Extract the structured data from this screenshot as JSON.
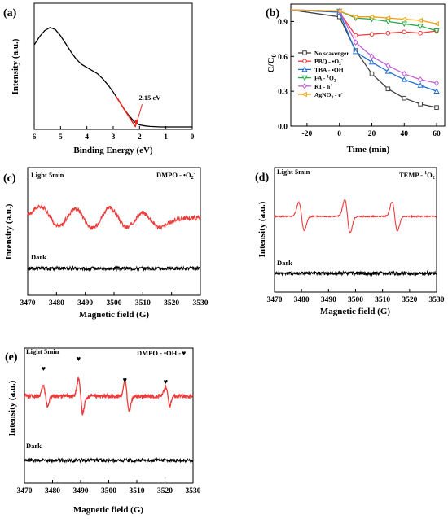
{
  "chart_data": [
    {
      "id": "a",
      "type": "line",
      "panel_label": "(a)",
      "xlabel": "Binding Energy (eV)",
      "ylabel": "Intensity (a.u.)",
      "xlim": [
        6,
        0
      ],
      "x_reversed": true,
      "xticks": [
        6,
        5,
        4,
        3,
        2,
        1,
        0
      ],
      "yticks_shown": false,
      "series": [
        {
          "color": "#000000",
          "x": [
            6.0,
            5.8,
            5.6,
            5.4,
            5.2,
            5.0,
            4.8,
            4.6,
            4.4,
            4.2,
            4.0,
            3.8,
            3.6,
            3.4,
            3.2,
            3.0,
            2.8,
            2.6,
            2.4,
            2.2,
            2.0,
            1.8,
            1.6,
            1.2,
            0.8,
            0.4,
            0.0
          ],
          "y": [
            0.8,
            0.88,
            0.94,
            0.97,
            0.95,
            0.89,
            0.81,
            0.73,
            0.66,
            0.61,
            0.58,
            0.55,
            0.52,
            0.47,
            0.41,
            0.34,
            0.26,
            0.18,
            0.11,
            0.05,
            0.02,
            0.01,
            0.005,
            0.0,
            0.0,
            0.0,
            0.0
          ]
        }
      ],
      "fit_line": {
        "color": "#e8251f",
        "x": [
          2.9,
          2.15
        ],
        "y": [
          0.3,
          0.0
        ]
      },
      "annotation": {
        "text": "2.15 eV",
        "x": 2.15,
        "color": "#e8251f"
      }
    },
    {
      "id": "b",
      "type": "line",
      "panel_label": "(b)",
      "xlabel": "Time (min)",
      "ylabel": "C/C",
      "ylabel_sub": "0",
      "xlim": [
        -30,
        65
      ],
      "ylim": [
        0.0,
        1.05
      ],
      "xticks": [
        -20,
        0,
        20,
        40,
        60
      ],
      "yticks": [
        0.0,
        0.3,
        0.6,
        0.9
      ],
      "x": [
        -30,
        0,
        10,
        20,
        30,
        40,
        50,
        60
      ],
      "series": [
        {
          "label": "No scavenger",
          "sup": "",
          "color": "#404040",
          "marker": "square",
          "values": [
            1.0,
            0.94,
            0.65,
            0.45,
            0.32,
            0.24,
            0.19,
            0.16
          ]
        },
        {
          "label": "PBQ - •O",
          "sub": "2",
          "sup": "-",
          "color": "#ee3a3a",
          "marker": "circle",
          "values": [
            1.0,
            0.98,
            0.78,
            0.79,
            0.8,
            0.81,
            0.8,
            0.82
          ]
        },
        {
          "label": "TBA - •OH",
          "sup": "",
          "color": "#1f6fd0",
          "marker": "triangle",
          "values": [
            1.0,
            0.98,
            0.64,
            0.55,
            0.47,
            0.4,
            0.35,
            0.3
          ]
        },
        {
          "label": "FA - ",
          "sup": "1",
          "tail": "O",
          "sub": "2",
          "color": "#2aa84a",
          "marker": "down",
          "values": [
            1.0,
            0.99,
            0.93,
            0.92,
            0.9,
            0.88,
            0.86,
            0.82
          ]
        },
        {
          "label": "KI - h",
          "sup": "+",
          "color": "#c060d8",
          "marker": "diamond",
          "values": [
            1.0,
            0.99,
            0.72,
            0.6,
            0.52,
            0.45,
            0.4,
            0.37
          ]
        },
        {
          "label": "AgNO",
          "sub": "3",
          "tail": " - e",
          "sup": "-",
          "color": "#f0a010",
          "marker": "left",
          "values": [
            1.0,
            0.99,
            0.94,
            0.94,
            0.93,
            0.92,
            0.91,
            0.88
          ]
        }
      ]
    },
    {
      "id": "c",
      "type": "line",
      "panel_label": "(c)",
      "xlabel": "Magnetic field (G)",
      "ylabel": "Intensity (a.u.)",
      "xlim": [
        3470,
        3530
      ],
      "xticks": [
        3470,
        3480,
        3490,
        3500,
        3510,
        3520,
        3530
      ],
      "top_label": "Light 5min",
      "bottom_label": "Dark",
      "species": "DMPO - •O",
      "species_sub": "2",
      "species_sup": "-",
      "light_color": "#ee3a3a",
      "dark_color": "#000000",
      "peaks": [
        {
          "x": 3478,
          "amp": 1.0
        },
        {
          "x": 3489.5,
          "amp": 1.1
        },
        {
          "x": 3501.5,
          "amp": 1.1
        },
        {
          "x": 3512.5,
          "amp": 0.8
        }
      ],
      "peak_width": 3.6,
      "noise": 0.25
    },
    {
      "id": "d",
      "type": "line",
      "panel_label": "(d)",
      "xlabel": "Magnetic field (G)",
      "ylabel": "Intensity (a.u.)",
      "xlim": [
        3470,
        3530
      ],
      "xticks": [
        3470,
        3480,
        3490,
        3500,
        3510,
        3520,
        3530
      ],
      "top_label": "Light 5min",
      "bottom_label": "Dark",
      "species": "TEMP - ",
      "species_sup": "1",
      "species_tail": "O",
      "species_sub": "2",
      "light_color": "#ee3a3a",
      "dark_color": "#000000",
      "peaks": [
        {
          "x": 3480,
          "amp": 1.25
        },
        {
          "x": 3497,
          "amp": 1.45
        },
        {
          "x": 3514.5,
          "amp": 1.25
        }
      ],
      "peak_width": 1.0,
      "noise": 0.07
    },
    {
      "id": "e",
      "type": "line",
      "panel_label": "(e)",
      "xlabel": "Magnetic field (G)",
      "ylabel": "Intensity (a.u.)",
      "xlim": [
        3470,
        3530
      ],
      "xticks": [
        3470,
        3480,
        3490,
        3500,
        3510,
        3520,
        3530
      ],
      "top_label": "Light 5min",
      "bottom_label": "Dark",
      "species": "DMPO - •OH -",
      "marker_symbol": "♥",
      "light_color": "#ee3a3a",
      "dark_color": "#000000",
      "peaks": [
        {
          "x": 3477.5,
          "amp": 0.9
        },
        {
          "x": 3490,
          "amp": 1.5
        },
        {
          "x": 3506.5,
          "amp": 1.3
        },
        {
          "x": 3521,
          "amp": 0.8
        }
      ],
      "peak_width": 0.75,
      "noise": 0.22
    }
  ]
}
